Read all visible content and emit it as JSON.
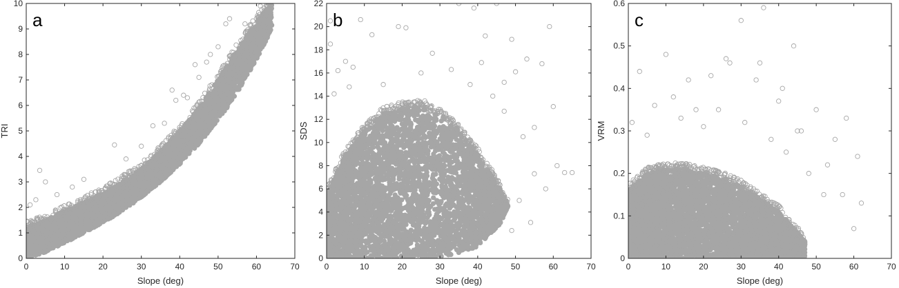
{
  "chart_data": [
    {
      "type": "scatter",
      "panel_label": "a",
      "xlabel": "Slope (deg)",
      "ylabel": "TRI",
      "xlim": [
        0,
        70
      ],
      "ylim": [
        0,
        10
      ],
      "xticks": [
        "0",
        "10",
        "20",
        "30",
        "40",
        "50",
        "60",
        "70"
      ],
      "yticks": [
        "0",
        "1",
        "2",
        "3",
        "4",
        "5",
        "6",
        "7",
        "8",
        "9",
        "10"
      ],
      "grid": false,
      "marker": "open-circle",
      "marker_color": "#a6a6a6",
      "dense_band": {
        "x": [
          0,
          5,
          10,
          15,
          20,
          25,
          30,
          35,
          40,
          45,
          50,
          55,
          60,
          64
        ],
        "low": [
          0,
          0.25,
          0.6,
          1.0,
          1.4,
          1.85,
          2.4,
          3.0,
          3.7,
          4.5,
          5.4,
          6.5,
          7.8,
          9.0
        ],
        "high": [
          1.2,
          1.5,
          1.85,
          2.2,
          2.55,
          3.0,
          3.5,
          4.2,
          5.0,
          5.9,
          7.0,
          8.2,
          9.3,
          10.0
        ]
      },
      "outliers": [
        [
          3.5,
          3.45
        ],
        [
          2.5,
          2.3
        ],
        [
          5,
          3.0
        ],
        [
          23,
          4.45
        ],
        [
          38,
          6.6
        ],
        [
          44,
          7.6
        ],
        [
          47,
          7.7
        ],
        [
          50,
          8.3
        ],
        [
          52,
          9.2
        ],
        [
          53,
          9.4
        ],
        [
          57,
          9.2
        ],
        [
          61,
          9.9
        ],
        [
          63,
          10
        ],
        [
          39,
          6.2
        ],
        [
          41,
          6.4
        ],
        [
          42,
          6.3
        ],
        [
          45,
          7.1
        ],
        [
          33,
          5.2
        ],
        [
          36,
          5.3
        ],
        [
          30,
          4.4
        ],
        [
          26,
          3.9
        ],
        [
          15,
          3.1
        ],
        [
          12,
          2.8
        ],
        [
          8,
          2.5
        ],
        [
          1,
          2.1
        ],
        [
          48,
          8.0
        ]
      ]
    },
    {
      "type": "scatter",
      "panel_label": "b",
      "xlabel": "Slope (deg)",
      "ylabel": "SDS",
      "xlim": [
        0,
        70
      ],
      "ylim": [
        0,
        22
      ],
      "xticks": [
        "0",
        "10",
        "20",
        "30",
        "40",
        "50",
        "60",
        "70"
      ],
      "yticks": [
        "0",
        "2",
        "4",
        "6",
        "8",
        "10",
        "12",
        "14",
        "16",
        "18",
        "20",
        "22"
      ],
      "grid": false,
      "marker": "open-circle",
      "marker_color": "#a6a6a6",
      "dense_band": {
        "x": [
          0,
          5,
          10,
          15,
          20,
          25,
          30,
          35,
          40,
          43,
          46,
          48
        ],
        "low": [
          0,
          0,
          0,
          0,
          0,
          0,
          0,
          0.5,
          1.0,
          2.0,
          3.0,
          4.5
        ],
        "high": [
          5.5,
          9.0,
          11.0,
          12.5,
          13.0,
          13.2,
          12.5,
          11.0,
          9.0,
          7.5,
          6.0,
          4.5
        ]
      },
      "outliers": [
        [
          1,
          20.5
        ],
        [
          1,
          18.5
        ],
        [
          3,
          16.2
        ],
        [
          5,
          17.0
        ],
        [
          9,
          20.6
        ],
        [
          12,
          19.3
        ],
        [
          19,
          20
        ],
        [
          21,
          19.9
        ],
        [
          28,
          17.7
        ],
        [
          33,
          16.3
        ],
        [
          35,
          22
        ],
        [
          39,
          21.6
        ],
        [
          42,
          19.2
        ],
        [
          45,
          22
        ],
        [
          49,
          18.9
        ],
        [
          50,
          16.1
        ],
        [
          53,
          17.2
        ],
        [
          57,
          16.8
        ],
        [
          59,
          20
        ],
        [
          60,
          13.1
        ],
        [
          61,
          8.0
        ],
        [
          63,
          7.4
        ],
        [
          65,
          7.4
        ],
        [
          55,
          11.3
        ],
        [
          52,
          10.5
        ],
        [
          47,
          15.2
        ],
        [
          44,
          14.0
        ],
        [
          49,
          2.4
        ],
        [
          54,
          3.1
        ],
        [
          38,
          15.0
        ],
        [
          25,
          16.0
        ],
        [
          15,
          15.0
        ],
        [
          6,
          14.8
        ],
        [
          55,
          7.3
        ],
        [
          58,
          6.0
        ],
        [
          51,
          5.0
        ],
        [
          47,
          12.7
        ],
        [
          41,
          16.9
        ],
        [
          7,
          16.5
        ],
        [
          2,
          14.2
        ]
      ]
    },
    {
      "type": "scatter",
      "panel_label": "c",
      "xlabel": "Slope (deg)",
      "ylabel": "VRM",
      "xlim": [
        0,
        70
      ],
      "ylim": [
        0,
        0.6
      ],
      "xticks": [
        "0",
        "10",
        "20",
        "30",
        "40",
        "50",
        "60",
        "70"
      ],
      "yticks": [
        "0",
        "0.1",
        "0.2",
        "0.3",
        "0.4",
        "0.5",
        "0.6"
      ],
      "grid": false,
      "marker": "open-circle",
      "marker_color": "#a6a6a6",
      "dense_band": {
        "x": [
          0,
          5,
          10,
          15,
          20,
          25,
          30,
          35,
          40,
          44,
          47
        ],
        "low": [
          0,
          0,
          0,
          0,
          0,
          0,
          0,
          0,
          0,
          0,
          0
        ],
        "high": [
          0.16,
          0.2,
          0.21,
          0.21,
          0.2,
          0.19,
          0.17,
          0.14,
          0.11,
          0.07,
          0.04
        ]
      },
      "outliers": [
        [
          3,
          0.44
        ],
        [
          10,
          0.48
        ],
        [
          12,
          0.38
        ],
        [
          16,
          0.42
        ],
        [
          18,
          0.35
        ],
        [
          22,
          0.43
        ],
        [
          26,
          0.47
        ],
        [
          27,
          0.46
        ],
        [
          30,
          0.56
        ],
        [
          34,
          0.42
        ],
        [
          35,
          0.46
        ],
        [
          36,
          0.59
        ],
        [
          40,
          0.37
        ],
        [
          41,
          0.4
        ],
        [
          44,
          0.5
        ],
        [
          45,
          0.3
        ],
        [
          50,
          0.35
        ],
        [
          53,
          0.22
        ],
        [
          55,
          0.28
        ],
        [
          58,
          0.33
        ],
        [
          61,
          0.24
        ],
        [
          62,
          0.13
        ],
        [
          60,
          0.07
        ],
        [
          57,
          0.15
        ],
        [
          52,
          0.15
        ],
        [
          48,
          0.2
        ],
        [
          46,
          0.3
        ],
        [
          42,
          0.25
        ],
        [
          31,
          0.32
        ],
        [
          24,
          0.35
        ],
        [
          14,
          0.33
        ],
        [
          7,
          0.36
        ],
        [
          1,
          0.32
        ],
        [
          5,
          0.29
        ],
        [
          20,
          0.31
        ],
        [
          38,
          0.28
        ]
      ]
    }
  ]
}
